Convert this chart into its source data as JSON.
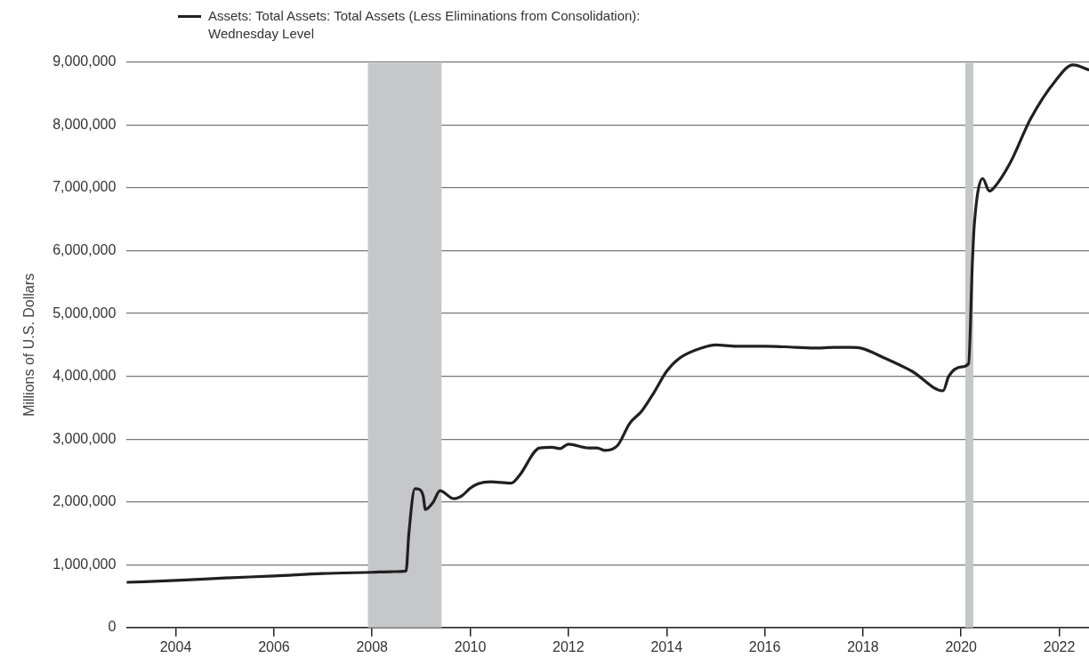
{
  "chart_data": {
    "type": "line",
    "ylabel": "Millions of U.S. Dollars",
    "xlim": [
      "2003-01-01",
      "2022-08-10"
    ],
    "xticks": [
      "2004",
      "2006",
      "2008",
      "2010",
      "2012",
      "2014",
      "2016",
      "2018",
      "2020",
      "2022"
    ],
    "ylim": [
      0,
      9000000
    ],
    "yticks": [
      0,
      {
        "value": 1000000,
        "label": "1,000,000"
      },
      {
        "value": 2000000,
        "label": "2,000,000"
      },
      {
        "value": 3000000,
        "label": "3,000,000"
      },
      {
        "value": 4000000,
        "label": "4,000,000"
      },
      {
        "value": 5000000,
        "label": "5,000,000"
      },
      {
        "value": 6000000,
        "label": "6,000,000"
      },
      {
        "value": 7000000,
        "label": "7,000,000"
      },
      {
        "value": 8000000,
        "label": "8,000,000"
      },
      {
        "value": 9000000,
        "label": "9,000,000"
      }
    ],
    "grid": "y",
    "legend": "top left",
    "marker": "none",
    "line_style": "solid",
    "bands": [
      {
        "axis": "x",
        "from": "2007-12-01",
        "to": "2009-06-01",
        "color": "#c6c7c9"
      },
      {
        "axis": "x",
        "from": "2020-02-01",
        "to": "2020-04-01",
        "color": "#c6c7c9"
      }
    ],
    "series": [
      {
        "name": "Assets: Total Assets: Total Assets (Less Eliminations from Consolidation): Wednesday Level",
        "color": "#231f20",
        "x": [
          "2003-01-01",
          "2004-01-01",
          "2005-01-01",
          "2006-01-01",
          "2007-01-01",
          "2008-01-01",
          "2008-06-01",
          "2008-09-10",
          "2008-10-01",
          "2008-11-15",
          "2008-12-18",
          "2009-01-15",
          "2009-02-01",
          "2009-04-01",
          "2009-05-20",
          "2009-09-01",
          "2009-11-01",
          "2010-01-01",
          "2010-03-01",
          "2010-06-01",
          "2010-11-01",
          "2011-01-01",
          "2011-06-01",
          "2011-09-01",
          "2011-11-01",
          "2012-01-01",
          "2012-06-01",
          "2012-08-01",
          "2012-10-01",
          "2013-01-01",
          "2013-04-01",
          "2013-07-01",
          "2013-10-01",
          "2014-01-01",
          "2014-04-01",
          "2014-10-01",
          "2015-01-01",
          "2015-06-01",
          "2016-01-01",
          "2016-06-01",
          "2017-01-01",
          "2017-06-01",
          "2017-10-01",
          "2018-01-01",
          "2018-06-01",
          "2019-01-01",
          "2019-08-20",
          "2019-10-01",
          "2020-01-01",
          "2020-02-26",
          "2020-03-25",
          "2020-04-08",
          "2020-06-10",
          "2020-07-29",
          "2020-09-01",
          "2021-01-01",
          "2021-06-01",
          "2021-12-01",
          "2022-04-13",
          "2022-08-10"
        ],
        "values": [
          720000,
          750000,
          790000,
          820000,
          860000,
          880000,
          890000,
          900000,
          1500000,
          2210000,
          2200000,
          2100000,
          1880000,
          2000000,
          2180000,
          2050000,
          2100000,
          2220000,
          2290000,
          2320000,
          2300000,
          2420000,
          2860000,
          2870000,
          2850000,
          2920000,
          2860000,
          2860000,
          2820000,
          2900000,
          3250000,
          3450000,
          3750000,
          4080000,
          4280000,
          4460000,
          4500000,
          4480000,
          4480000,
          4470000,
          4450000,
          4460000,
          4460000,
          4440000,
          4300000,
          4080000,
          3770000,
          4000000,
          4150000,
          4200000,
          5800000,
          6400000,
          7150000,
          6950000,
          7000000,
          7400000,
          8100000,
          8700000,
          8960000,
          8880000
        ]
      }
    ]
  }
}
